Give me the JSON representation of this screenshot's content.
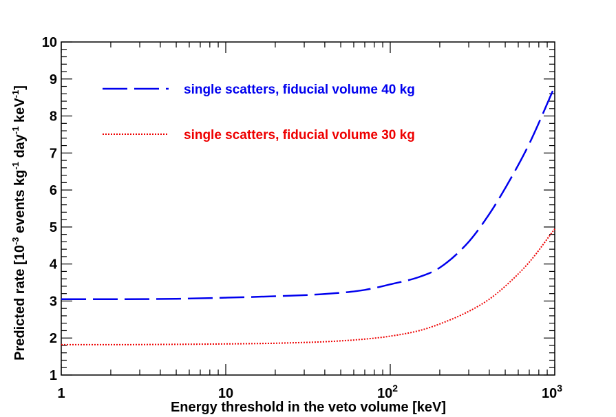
{
  "chart_data": {
    "type": "line",
    "x_scale": "log",
    "xlim": [
      1,
      1000
    ],
    "ylim": [
      1,
      10
    ],
    "xlabel": "Energy threshold in the veto volume [keV]",
    "ylabel": {
      "prefix": "Predicted rate [10",
      "exp1": "-3",
      "mid1": " events kg",
      "exp2": "-1",
      "mid2": " day",
      "exp3": "-1",
      "mid3": " keV",
      "exp4": "-1",
      "suffix": "]"
    },
    "x_tick_labels": [
      {
        "value": 1,
        "base": "1",
        "exp": ""
      },
      {
        "value": 10,
        "base": "10",
        "exp": ""
      },
      {
        "value": 100,
        "base": "10",
        "exp": "2"
      },
      {
        "value": 1000,
        "base": "10",
        "exp": "3"
      }
    ],
    "y_ticks": [
      1,
      2,
      3,
      4,
      5,
      6,
      7,
      8,
      9,
      10
    ],
    "series": [
      {
        "name": "single scatters, fiducial volume 40 kg",
        "color": "#0000ee",
        "style": "dashed",
        "x": [
          1,
          2,
          5,
          10,
          20,
          40,
          70,
          100,
          150,
          200,
          300,
          400,
          500,
          700,
          1000
        ],
        "y": [
          3.05,
          3.05,
          3.06,
          3.09,
          3.13,
          3.19,
          3.3,
          3.45,
          3.65,
          3.9,
          4.6,
          5.35,
          6.05,
          7.25,
          8.8
        ]
      },
      {
        "name": "single scatters, fiducial volume 30 kg",
        "color": "#ee0000",
        "style": "dotted",
        "x": [
          1,
          2,
          5,
          10,
          20,
          40,
          70,
          100,
          150,
          200,
          300,
          400,
          500,
          700,
          1000
        ],
        "y": [
          1.82,
          1.82,
          1.83,
          1.84,
          1.86,
          1.9,
          1.97,
          2.05,
          2.2,
          2.38,
          2.72,
          3.05,
          3.4,
          4.05,
          4.95
        ]
      }
    ]
  }
}
